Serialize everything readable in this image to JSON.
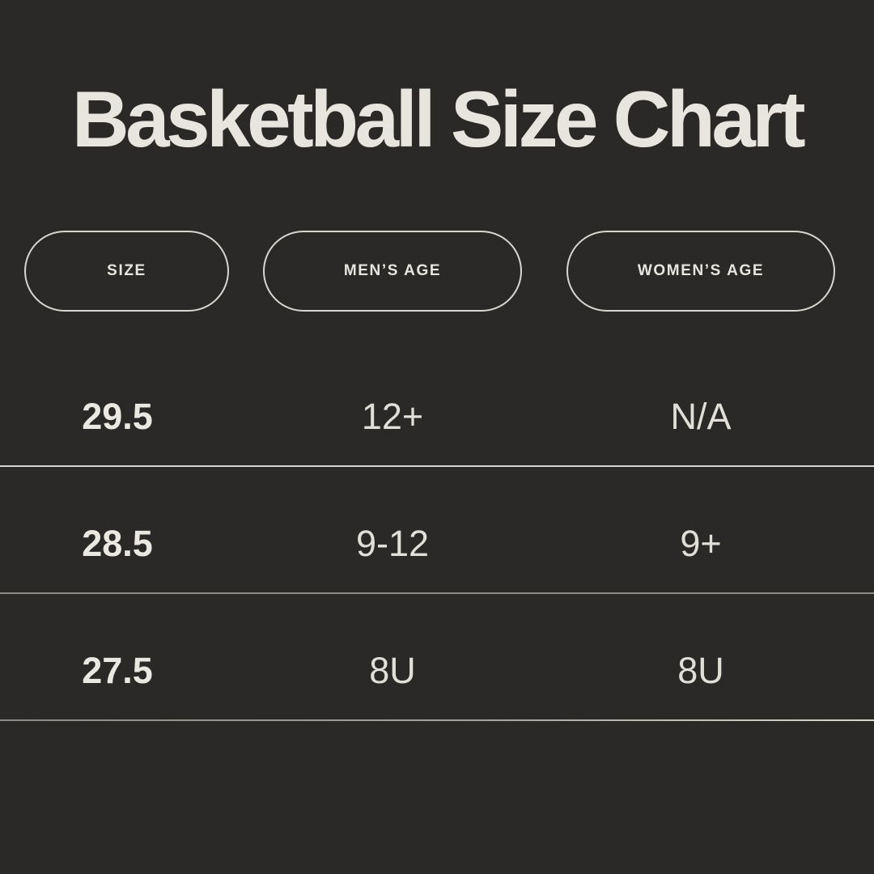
{
  "chart_data": {
    "type": "table",
    "title": "Basketball Size Chart",
    "columns": [
      "SIZE",
      "MEN’S AGE",
      "WOMEN’S AGE"
    ],
    "rows": [
      [
        "29.5",
        "12+",
        "N/A"
      ],
      [
        "28.5",
        "9-12",
        "9+"
      ],
      [
        "27.5",
        "8U",
        "8U"
      ]
    ],
    "layout": {
      "grid": "horizontal-dividers-only",
      "legend": "none"
    }
  },
  "colors": {
    "background": "#2a2928",
    "text": "#e8e5de",
    "pill_border": "#d9d6cf",
    "divider_bright": "#d8d5ce",
    "divider_muted": "#8b8a85"
  }
}
